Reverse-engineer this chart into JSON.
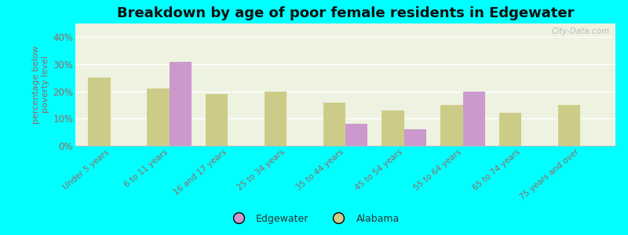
{
  "title": "Breakdown by age of poor female residents in Edgewater",
  "categories": [
    "Under 5 years",
    "6 to 11 years",
    "16 and 17 years",
    "25 to 34 years",
    "35 to 44 years",
    "45 to 54 years",
    "55 to 64 years",
    "65 to 74 years",
    "75 years and over"
  ],
  "edgewater_values": [
    null,
    31,
    null,
    null,
    8,
    6,
    20,
    null,
    null
  ],
  "alabama_values": [
    25,
    21,
    19,
    20,
    16,
    13,
    15,
    12,
    15
  ],
  "edgewater_color": "#cc99cc",
  "alabama_color": "#cccc88",
  "ylabel": "percentage below\npoverty level",
  "ylim": [
    0,
    45
  ],
  "yticks": [
    0,
    10,
    20,
    30,
    40
  ],
  "ytick_labels": [
    "0%",
    "10%",
    "20%",
    "30%",
    "40%"
  ],
  "background_color": "#00ffff",
  "plot_bg": "#eef2e0",
  "title_fontsize": 13,
  "bar_width": 0.38,
  "watermark": "City-Data.com",
  "tick_color": "#996666",
  "label_color": "#996666"
}
